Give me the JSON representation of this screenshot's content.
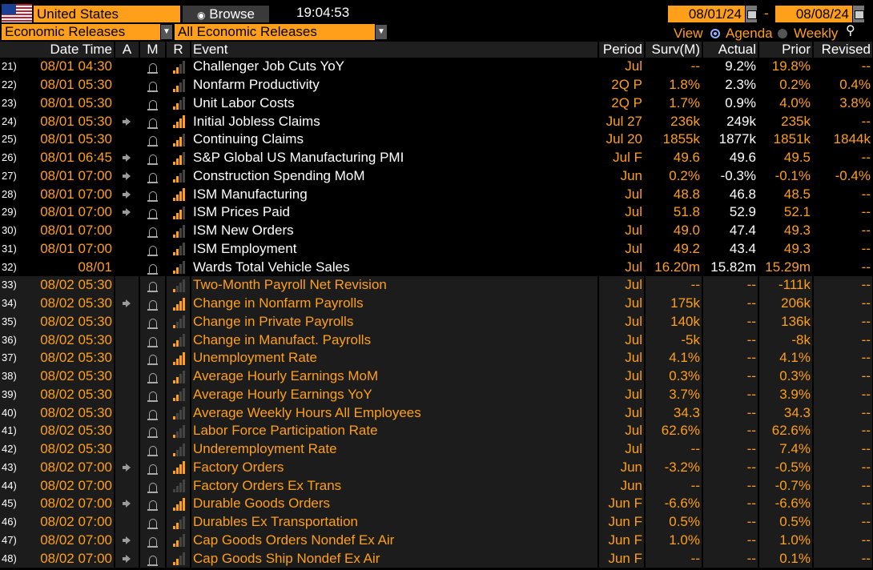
{
  "header": {
    "country": "United States",
    "browse_label": "Browse",
    "time": "19:04:53",
    "start_date": "08/01/24",
    "end_date": "08/08/24",
    "date_sep": "-"
  },
  "filters": {
    "category": "Economic Releases",
    "subcategory": "All Economic Releases",
    "view_label": "View",
    "view_agenda": "Agenda",
    "view_weekly": "Weekly"
  },
  "columns": [
    "Date Time",
    "A",
    "M",
    "R",
    "Event",
    "Period",
    "Surv(M)",
    "Actual",
    "Prior",
    "Revised"
  ],
  "rows": [
    {
      "n": "21)",
      "dt": "08/01 04:30",
      "a": false,
      "r": 2,
      "event": "Challenger Job Cuts YoY",
      "period": "Jul",
      "surv": "--",
      "actual": "9.2%",
      "prior": "19.8%",
      "revised": "--",
      "past": true
    },
    {
      "n": "22)",
      "dt": "08/01 05:30",
      "a": false,
      "r": 2,
      "event": "Nonfarm Productivity",
      "period": "2Q P",
      "surv": "1.8%",
      "actual": "2.3%",
      "prior": "0.2%",
      "revised": "0.4%",
      "past": true
    },
    {
      "n": "23)",
      "dt": "08/01 05:30",
      "a": false,
      "r": 2,
      "event": "Unit Labor Costs",
      "period": "2Q P",
      "surv": "1.7%",
      "actual": "0.9%",
      "prior": "4.0%",
      "revised": "3.8%",
      "past": true
    },
    {
      "n": "24)",
      "dt": "08/01 05:30",
      "a": true,
      "r": 4,
      "event": "Initial Jobless Claims",
      "period": "Jul 27",
      "surv": "236k",
      "actual": "249k",
      "prior": "235k",
      "revised": "--",
      "past": true
    },
    {
      "n": "25)",
      "dt": "08/01 05:30",
      "a": false,
      "r": 3,
      "event": "Continuing Claims",
      "period": "Jul 20",
      "surv": "1855k",
      "actual": "1877k",
      "prior": "1851k",
      "revised": "1844k",
      "past": true
    },
    {
      "n": "26)",
      "dt": "08/01 06:45",
      "a": true,
      "r": 3,
      "event": "S&P Global US Manufacturing PMI",
      "period": "Jul F",
      "surv": "49.6",
      "actual": "49.6",
      "prior": "49.5",
      "revised": "--",
      "past": true
    },
    {
      "n": "27)",
      "dt": "08/01 07:00",
      "a": true,
      "r": 2,
      "event": "Construction Spending MoM",
      "period": "Jun",
      "surv": "0.2%",
      "actual": "-0.3%",
      "prior": "-0.1%",
      "revised": "-0.4%",
      "past": true
    },
    {
      "n": "28)",
      "dt": "08/01 07:00",
      "a": true,
      "r": 4,
      "event": "ISM Manufacturing",
      "period": "Jul",
      "surv": "48.8",
      "actual": "46.8",
      "prior": "48.5",
      "revised": "--",
      "past": true
    },
    {
      "n": "29)",
      "dt": "08/01 07:00",
      "a": true,
      "r": 3,
      "event": "ISM Prices Paid",
      "period": "Jul",
      "surv": "51.8",
      "actual": "52.9",
      "prior": "52.1",
      "revised": "--",
      "past": true
    },
    {
      "n": "30)",
      "dt": "08/01 07:00",
      "a": false,
      "r": 2,
      "event": "ISM New Orders",
      "period": "Jul",
      "surv": "49.0",
      "actual": "47.4",
      "prior": "49.3",
      "revised": "--",
      "past": true
    },
    {
      "n": "31)",
      "dt": "08/01 07:00",
      "a": false,
      "r": 2,
      "event": "ISM Employment",
      "period": "Jul",
      "surv": "49.2",
      "actual": "43.4",
      "prior": "49.3",
      "revised": "--",
      "past": true
    },
    {
      "n": "32)",
      "dt": "08/01",
      "a": false,
      "r": 2,
      "event": "Wards Total Vehicle Sales",
      "period": "Jul",
      "surv": "16.20m",
      "actual": "15.82m",
      "prior": "15.29m",
      "revised": "--",
      "past": true
    },
    {
      "n": "33)",
      "dt": "08/02 05:30",
      "a": false,
      "r": 1,
      "event": "Two-Month Payroll Net Revision",
      "period": "Jul",
      "surv": "--",
      "actual": "--",
      "prior": "-111k",
      "revised": "--",
      "past": false
    },
    {
      "n": "34)",
      "dt": "08/02 05:30",
      "a": true,
      "r": 4,
      "event": "Change in Nonfarm Payrolls",
      "period": "Jul",
      "surv": "175k",
      "actual": "--",
      "prior": "206k",
      "revised": "--",
      "past": false
    },
    {
      "n": "35)",
      "dt": "08/02 05:30",
      "a": false,
      "r": 1,
      "event": "Change in Private Payrolls",
      "period": "Jul",
      "surv": "140k",
      "actual": "--",
      "prior": "136k",
      "revised": "--",
      "past": false
    },
    {
      "n": "36)",
      "dt": "08/02 05:30",
      "a": false,
      "r": 2,
      "event": "Change in Manufact. Payrolls",
      "period": "Jul",
      "surv": "-5k",
      "actual": "--",
      "prior": "-8k",
      "revised": "--",
      "past": false
    },
    {
      "n": "37)",
      "dt": "08/02 05:30",
      "a": false,
      "r": 4,
      "event": "Unemployment Rate",
      "period": "Jul",
      "surv": "4.1%",
      "actual": "--",
      "prior": "4.1%",
      "revised": "--",
      "past": false
    },
    {
      "n": "38)",
      "dt": "08/02 05:30",
      "a": false,
      "r": 2,
      "event": "Average Hourly Earnings MoM",
      "period": "Jul",
      "surv": "0.3%",
      "actual": "--",
      "prior": "0.3%",
      "revised": "--",
      "past": false
    },
    {
      "n": "39)",
      "dt": "08/02 05:30",
      "a": false,
      "r": 2,
      "event": "Average Hourly Earnings YoY",
      "period": "Jul",
      "surv": "3.7%",
      "actual": "--",
      "prior": "3.9%",
      "revised": "--",
      "past": false
    },
    {
      "n": "40)",
      "dt": "08/02 05:30",
      "a": false,
      "r": 1,
      "event": "Average Weekly Hours All Employees",
      "period": "Jul",
      "surv": "34.3",
      "actual": "--",
      "prior": "34.3",
      "revised": "--",
      "past": false
    },
    {
      "n": "41)",
      "dt": "08/02 05:30",
      "a": false,
      "r": 1,
      "event": "Labor Force Participation Rate",
      "period": "Jul",
      "surv": "62.6%",
      "actual": "--",
      "prior": "62.6%",
      "revised": "--",
      "past": false
    },
    {
      "n": "42)",
      "dt": "08/02 05:30",
      "a": false,
      "r": 1,
      "event": "Underemployment Rate",
      "period": "Jul",
      "surv": "--",
      "actual": "--",
      "prior": "7.4%",
      "revised": "--",
      "past": false
    },
    {
      "n": "43)",
      "dt": "08/02 07:00",
      "a": true,
      "r": 4,
      "event": "Factory Orders",
      "period": "Jun",
      "surv": "-3.2%",
      "actual": "--",
      "prior": "-0.5%",
      "revised": "--",
      "past": false
    },
    {
      "n": "44)",
      "dt": "08/02 07:00",
      "a": false,
      "r": 0,
      "event": "Factory Orders Ex Trans",
      "period": "Jun",
      "surv": "--",
      "actual": "--",
      "prior": "-0.7%",
      "revised": "--",
      "past": false
    },
    {
      "n": "45)",
      "dt": "08/02 07:00",
      "a": true,
      "r": 4,
      "event": "Durable Goods Orders",
      "period": "Jun F",
      "surv": "-6.6%",
      "actual": "--",
      "prior": "-6.6%",
      "revised": "--",
      "past": false
    },
    {
      "n": "46)",
      "dt": "08/02 07:00",
      "a": false,
      "r": 2,
      "event": "Durables Ex Transportation",
      "period": "Jun F",
      "surv": "0.5%",
      "actual": "--",
      "prior": "0.5%",
      "revised": "--",
      "past": false
    },
    {
      "n": "47)",
      "dt": "08/02 07:00",
      "a": true,
      "r": 2,
      "event": "Cap Goods Orders Nondef Ex Air",
      "period": "Jun F",
      "surv": "1.0%",
      "actual": "--",
      "prior": "1.0%",
      "revised": "--",
      "past": false
    },
    {
      "n": "48)",
      "dt": "08/02 07:00",
      "a": true,
      "r": 2,
      "event": "Cap Goods Ship Nondef Ex Air",
      "period": "Jun F",
      "surv": "--",
      "actual": "--",
      "prior": "0.1%",
      "revised": "--",
      "past": false
    }
  ],
  "colors": {
    "accent": "#ff9f1a",
    "background": "#000000",
    "future_row": "#1c1c1c"
  }
}
